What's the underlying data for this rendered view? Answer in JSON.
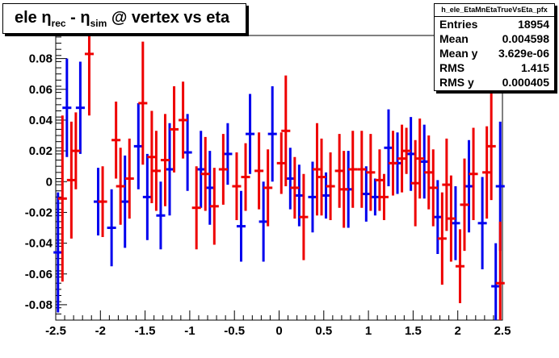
{
  "title": {
    "prefix": "ele ",
    "eta1": "η",
    "sub1": "rec",
    "mid": " - ",
    "eta2": "η",
    "sub2": "sim",
    "suffix": " @ vertex vs eta"
  },
  "stats": {
    "name": "h_ele_EtaMnEtaTrueVsEta_pfx",
    "rows": [
      {
        "label": "Entries",
        "value": "18954"
      },
      {
        "label": "Mean",
        "value": "0.004598"
      },
      {
        "label": "Mean y",
        "value": "3.629e-06"
      },
      {
        "label": "RMS",
        "value": "1.415"
      },
      {
        "label": "RMS y",
        "value": "0.000405"
      }
    ]
  },
  "chart_data": {
    "type": "scatter",
    "xlim": [
      -2.5,
      2.5
    ],
    "ylim": [
      -0.09,
      0.095
    ],
    "x_ticks": [
      -2.5,
      -2,
      -1.5,
      -1,
      -0.5,
      0,
      0.5,
      1,
      1.5,
      2,
      2.5
    ],
    "x_tick_labels": [
      "-2.5",
      "-2",
      "-1.5",
      "-1",
      "-0.5",
      "0",
      "0.5",
      "1",
      "1.5",
      "2",
      "2.5"
    ],
    "y_ticks": [
      -0.08,
      -0.06,
      -0.04,
      -0.02,
      0,
      0.02,
      0.04,
      0.06,
      0.08
    ],
    "y_tick_labels": [
      "-0.08",
      "-0.06",
      "-0.04",
      "-0.02",
      "0",
      "0.02",
      "0.04",
      "0.06",
      "0.08"
    ],
    "grid": false,
    "legend": "none",
    "series": [
      {
        "color": "#0000ee",
        "points": [
          {
            "x": -2.475,
            "y": -0.046,
            "err": 0.039
          },
          {
            "x": -2.375,
            "y": 0.048,
            "err": 0.032
          },
          {
            "x": -2.225,
            "y": 0.048,
            "err": 0.03
          },
          {
            "x": -2.025,
            "y": -0.013,
            "err": 0.022
          },
          {
            "x": -1.875,
            "y": -0.03,
            "err": 0.025
          },
          {
            "x": -1.725,
            "y": -0.013,
            "err": 0.03
          },
          {
            "x": -1.575,
            "y": 0.023,
            "err": 0.028
          },
          {
            "x": -1.475,
            "y": -0.01,
            "err": 0.028
          },
          {
            "x": -1.325,
            "y": -0.022,
            "err": 0.022
          },
          {
            "x": -1.225,
            "y": 0.008,
            "err": 0.03
          },
          {
            "x": -1.025,
            "y": 0.019,
            "err": 0.025
          },
          {
            "x": -0.875,
            "y": 0.008,
            "err": 0.025
          },
          {
            "x": -0.775,
            "y": -0.004,
            "err": 0.024
          },
          {
            "x": -0.575,
            "y": 0.018,
            "err": 0.02
          },
          {
            "x": -0.425,
            "y": -0.029,
            "err": 0.023
          },
          {
            "x": -0.325,
            "y": 0.031,
            "err": 0.026
          },
          {
            "x": -0.175,
            "y": -0.026,
            "err": 0.026
          },
          {
            "x": -0.075,
            "y": 0.031,
            "err": 0.031
          },
          {
            "x": 0.125,
            "y": 0.002,
            "err": 0.02
          },
          {
            "x": 0.225,
            "y": -0.009,
            "err": 0.02
          },
          {
            "x": 0.375,
            "y": -0.01,
            "err": 0.023
          },
          {
            "x": 0.525,
            "y": -0.009,
            "err": 0.015
          },
          {
            "x": 0.775,
            "y": -0.005,
            "err": 0.025
          },
          {
            "x": 0.975,
            "y": -0.008,
            "err": 0.018
          },
          {
            "x": 1.075,
            "y": -0.01,
            "err": 0.012
          },
          {
            "x": 1.225,
            "y": 0.022,
            "err": 0.025
          },
          {
            "x": 1.325,
            "y": 0.012,
            "err": 0.02
          },
          {
            "x": 1.475,
            "y": 0.018,
            "err": 0.024
          },
          {
            "x": 1.625,
            "y": 0.013,
            "err": 0.024
          },
          {
            "x": 1.775,
            "y": -0.023,
            "err": 0.024
          },
          {
            "x": 1.975,
            "y": -0.027,
            "err": 0.024
          },
          {
            "x": 2.125,
            "y": -0.003,
            "err": 0.03
          },
          {
            "x": 2.275,
            "y": -0.027,
            "err": 0.03
          },
          {
            "x": 2.425,
            "y": -0.068,
            "err": 0.028
          },
          {
            "x": 2.475,
            "y": -0.003,
            "err": 0.042
          }
        ]
      },
      {
        "color": "#ee0000",
        "points": [
          {
            "x": -2.425,
            "y": -0.011,
            "err": 0.054
          },
          {
            "x": -2.325,
            "y": 0.001,
            "err": 0.038
          },
          {
            "x": -2.275,
            "y": 0.02,
            "err": 0.025
          },
          {
            "x": -2.125,
            "y": 0.083,
            "err": 0.04
          },
          {
            "x": -1.975,
            "y": -0.013,
            "err": 0.023
          },
          {
            "x": -1.825,
            "y": 0.027,
            "err": 0.025
          },
          {
            "x": -1.775,
            "y": -0.003,
            "err": 0.025
          },
          {
            "x": -1.675,
            "y": 0.002,
            "err": 0.026
          },
          {
            "x": -1.525,
            "y": 0.051,
            "err": 0.04
          },
          {
            "x": -1.425,
            "y": 0.016,
            "err": 0.03
          },
          {
            "x": -1.375,
            "y": 0.007,
            "err": 0.026
          },
          {
            "x": -1.275,
            "y": 0.014,
            "err": 0.03
          },
          {
            "x": -1.175,
            "y": 0.034,
            "err": 0.028
          },
          {
            "x": -1.075,
            "y": 0.04,
            "err": 0.025
          },
          {
            "x": -0.925,
            "y": -0.017,
            "err": 0.027
          },
          {
            "x": -0.825,
            "y": 0.005,
            "err": 0.024
          },
          {
            "x": -0.725,
            "y": -0.016,
            "err": 0.025
          },
          {
            "x": -0.625,
            "y": 0.008,
            "err": 0.023
          },
          {
            "x": -0.475,
            "y": -0.003,
            "err": 0.022
          },
          {
            "x": -0.375,
            "y": 0.003,
            "err": 0.022
          },
          {
            "x": -0.225,
            "y": 0.007,
            "err": 0.025
          },
          {
            "x": -0.125,
            "y": -0.004,
            "err": 0.025
          },
          {
            "x": 0.025,
            "y": 0.012,
            "err": 0.02
          },
          {
            "x": 0.075,
            "y": 0.033,
            "err": 0.036
          },
          {
            "x": 0.175,
            "y": -0.004,
            "err": 0.02
          },
          {
            "x": 0.275,
            "y": -0.023,
            "err": 0.028
          },
          {
            "x": 0.425,
            "y": 0.008,
            "err": 0.03
          },
          {
            "x": 0.475,
            "y": 0.003,
            "err": 0.025
          },
          {
            "x": 0.575,
            "y": -0.003,
            "err": 0.022
          },
          {
            "x": 0.675,
            "y": 0.007,
            "err": 0.024
          },
          {
            "x": 0.725,
            "y": -0.005,
            "err": 0.025
          },
          {
            "x": 0.825,
            "y": 0.008,
            "err": 0.025
          },
          {
            "x": 0.925,
            "y": 0.008,
            "err": 0.025
          },
          {
            "x": 1.025,
            "y": 0.006,
            "err": 0.025
          },
          {
            "x": 1.125,
            "y": 0.001,
            "err": 0.02
          },
          {
            "x": 1.175,
            "y": -0.01,
            "err": 0.015
          },
          {
            "x": 1.275,
            "y": 0.012,
            "err": 0.021
          },
          {
            "x": 1.375,
            "y": 0.015,
            "err": 0.022
          },
          {
            "x": 1.425,
            "y": 0.02,
            "err": 0.015
          },
          {
            "x": 1.525,
            "y": -0.001,
            "err": 0.028
          },
          {
            "x": 1.575,
            "y": 0.015,
            "err": 0.026
          },
          {
            "x": 1.675,
            "y": 0.006,
            "err": 0.024
          },
          {
            "x": 1.725,
            "y": -0.004,
            "err": 0.025
          },
          {
            "x": 1.825,
            "y": -0.037,
            "err": 0.03
          },
          {
            "x": 1.875,
            "y": -0.002,
            "err": 0.03
          },
          {
            "x": 1.925,
            "y": -0.024,
            "err": 0.028
          },
          {
            "x": 2.025,
            "y": -0.055,
            "err": 0.024
          },
          {
            "x": 2.075,
            "y": -0.015,
            "err": 0.03
          },
          {
            "x": 2.175,
            "y": 0.005,
            "err": 0.03
          },
          {
            "x": 2.325,
            "y": 0.006,
            "err": 0.03
          },
          {
            "x": 2.375,
            "y": 0.023,
            "err": 0.035
          },
          {
            "x": 2.475,
            "y": -0.066,
            "err": 0.04
          }
        ]
      }
    ]
  }
}
